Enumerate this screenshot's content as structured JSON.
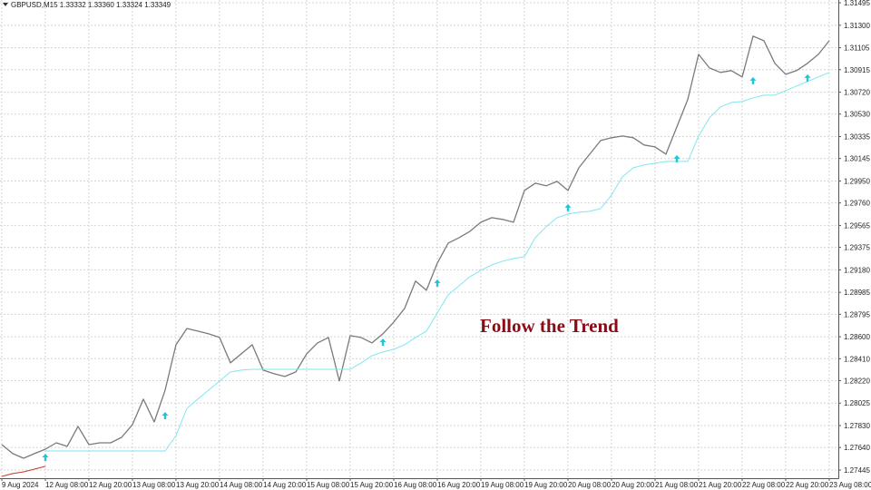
{
  "chart_data": {
    "type": "line",
    "title": "GBPUSD,M15  1.33332 1.33360 1.33324 1.33349",
    "annotation": "Follow the Trend",
    "grid": true,
    "categories": [
      "9 Aug 2024",
      null,
      null,
      null,
      "12 Aug 08:00",
      null,
      null,
      null,
      "12 Aug 20:00",
      null,
      null,
      null,
      "13 Aug 08:00",
      null,
      null,
      null,
      "13 Aug 20:00",
      null,
      null,
      null,
      "14 Aug 08:00",
      null,
      null,
      null,
      "14 Aug 20:00",
      null,
      null,
      null,
      "15 Aug 08:00",
      null,
      null,
      null,
      "15 Aug 20:00",
      null,
      null,
      null,
      "16 Aug 08:00",
      null,
      null,
      null,
      "16 Aug 20:00",
      null,
      null,
      null,
      "19 Aug 08:00",
      null,
      null,
      null,
      "19 Aug 20:00",
      null,
      null,
      null,
      "20 Aug 08:00",
      null,
      null,
      null,
      "20 Aug 20:00",
      null,
      null,
      null,
      "21 Aug 08:00",
      null,
      null,
      null,
      "21 Aug 20:00",
      null,
      null,
      null,
      "22 Aug 08:00",
      null,
      null,
      null,
      "22 Aug 20:00",
      null,
      null,
      null,
      "23 Aug 08:00"
    ],
    "ylim": [
      1.27374,
      1.31519
    ],
    "yticks": [
      1.31495,
      {
        "value": 1.313,
        "label": "1.31300"
      },
      1.31105,
      1.30915,
      {
        "value": 1.3072,
        "label": "1.30720"
      },
      {
        "value": 1.3053,
        "label": "1.30530"
      },
      1.30335,
      1.30145,
      {
        "value": 1.2995,
        "label": "1.29950"
      },
      {
        "value": 1.2976,
        "label": "1.29760"
      },
      1.29565,
      1.29375,
      {
        "value": 1.2918,
        "label": "1.29180"
      },
      1.28985,
      1.28795,
      {
        "value": 1.286,
        "label": "1.28600"
      },
      {
        "value": 1.2841,
        "label": "1.28410"
      },
      {
        "value": 1.2822,
        "label": "1.28220"
      },
      1.28025,
      {
        "value": 1.2783,
        "label": "1.27830"
      },
      {
        "value": 1.2764,
        "label": "1.27640"
      },
      1.27445
    ],
    "series": [
      {
        "color": "#7a7a7a",
        "values": [
          1.27665,
          1.27587,
          1.27547,
          1.27587,
          1.27626,
          1.27681,
          1.2765,
          1.27823,
          1.27665,
          1.27681,
          1.27681,
          1.27728,
          1.27839,
          1.28059,
          1.27862,
          1.28138,
          1.28531,
          1.28672,
          1.28649,
          1.28625,
          1.28594,
          1.28374,
          1.28452,
          1.28531,
          1.28311,
          1.28279,
          1.28256,
          1.28295,
          1.28452,
          1.28547,
          1.28594,
          1.28216,
          1.2861,
          1.28594,
          1.28547,
          1.28625,
          1.28728,
          1.28846,
          1.29082,
          1.29003,
          1.29239,
          1.29412,
          1.29459,
          1.29514,
          1.29593,
          1.29632,
          1.29617,
          1.29593,
          1.29868,
          1.29931,
          1.29908,
          1.29947,
          1.29868,
          1.30065,
          1.30183,
          1.30301,
          1.30325,
          1.3034,
          1.30325,
          1.30262,
          1.30246,
          1.30183,
          1.30419,
          1.30655,
          1.31048,
          1.3093,
          1.30891,
          1.30907,
          1.30852,
          1.31206,
          1.31166,
          1.3097,
          1.30875,
          1.30907,
          1.3097,
          1.31048,
          1.31166
        ]
      },
      {
        "color": "#7fe6f2",
        "values": [
          null,
          null,
          null,
          null,
          1.2761,
          1.2761,
          1.2761,
          1.2761,
          1.2761,
          1.2761,
          1.2761,
          1.2761,
          1.2761,
          1.2761,
          1.2761,
          1.2761,
          1.27744,
          1.2798,
          1.28059,
          1.28138,
          1.28216,
          1.28295,
          1.28311,
          1.28318,
          1.28318,
          1.28318,
          1.28318,
          1.28318,
          1.28318,
          1.28318,
          1.28318,
          1.28318,
          1.28318,
          1.28374,
          1.28436,
          1.28468,
          1.28492,
          1.28531,
          1.28594,
          1.28649,
          1.28806,
          1.28964,
          1.29042,
          1.29121,
          1.29176,
          1.29223,
          1.29255,
          1.29278,
          1.29294,
          1.29459,
          1.29554,
          1.29632,
          1.29664,
          1.29679,
          1.29687,
          1.29711,
          1.29829,
          1.29986,
          1.30065,
          1.30089,
          1.30104,
          1.3012,
          1.3012,
          1.3012,
          1.3034,
          1.30498,
          1.30592,
          1.30631,
          1.30639,
          1.30671,
          1.30694,
          1.30694,
          1.30734,
          1.30773,
          1.30812,
          1.30852,
          1.30891
        ]
      },
      {
        "color": "#c0392b",
        "values": [
          1.2739,
          1.27414,
          1.27429,
          1.27453,
          1.27477,
          null,
          null,
          null,
          null,
          null,
          null,
          null,
          null,
          null,
          null,
          null,
          null,
          null,
          null,
          null,
          null,
          null,
          null,
          null,
          null,
          null,
          null,
          null,
          null,
          null,
          null,
          null,
          null,
          null,
          null,
          null,
          null,
          null,
          null,
          null,
          null,
          null,
          null,
          null,
          null,
          null,
          null,
          null,
          null,
          null,
          null,
          null,
          null,
          null,
          null,
          null,
          null,
          null,
          null,
          null,
          null,
          null,
          null,
          null,
          null,
          null,
          null,
          null,
          null,
          null,
          null,
          null,
          null,
          null,
          null,
          null,
          null
        ]
      },
      {
        "color": "#1fc6d6",
        "marker": "arrow-up",
        "values": [
          null,
          null,
          null,
          null,
          1.27555,
          null,
          null,
          null,
          null,
          null,
          null,
          null,
          null,
          null,
          null,
          1.27917,
          null,
          null,
          null,
          null,
          null,
          null,
          null,
          null,
          null,
          null,
          null,
          null,
          null,
          null,
          null,
          null,
          null,
          null,
          null,
          1.28554,
          null,
          null,
          null,
          null,
          1.29066,
          null,
          null,
          null,
          null,
          null,
          null,
          null,
          null,
          null,
          null,
          null,
          1.29719,
          null,
          null,
          null,
          null,
          null,
          null,
          null,
          null,
          null,
          1.30144,
          null,
          null,
          null,
          null,
          null,
          null,
          1.3082,
          null,
          null,
          null,
          null,
          1.30844,
          null,
          null
        ]
      }
    ]
  }
}
